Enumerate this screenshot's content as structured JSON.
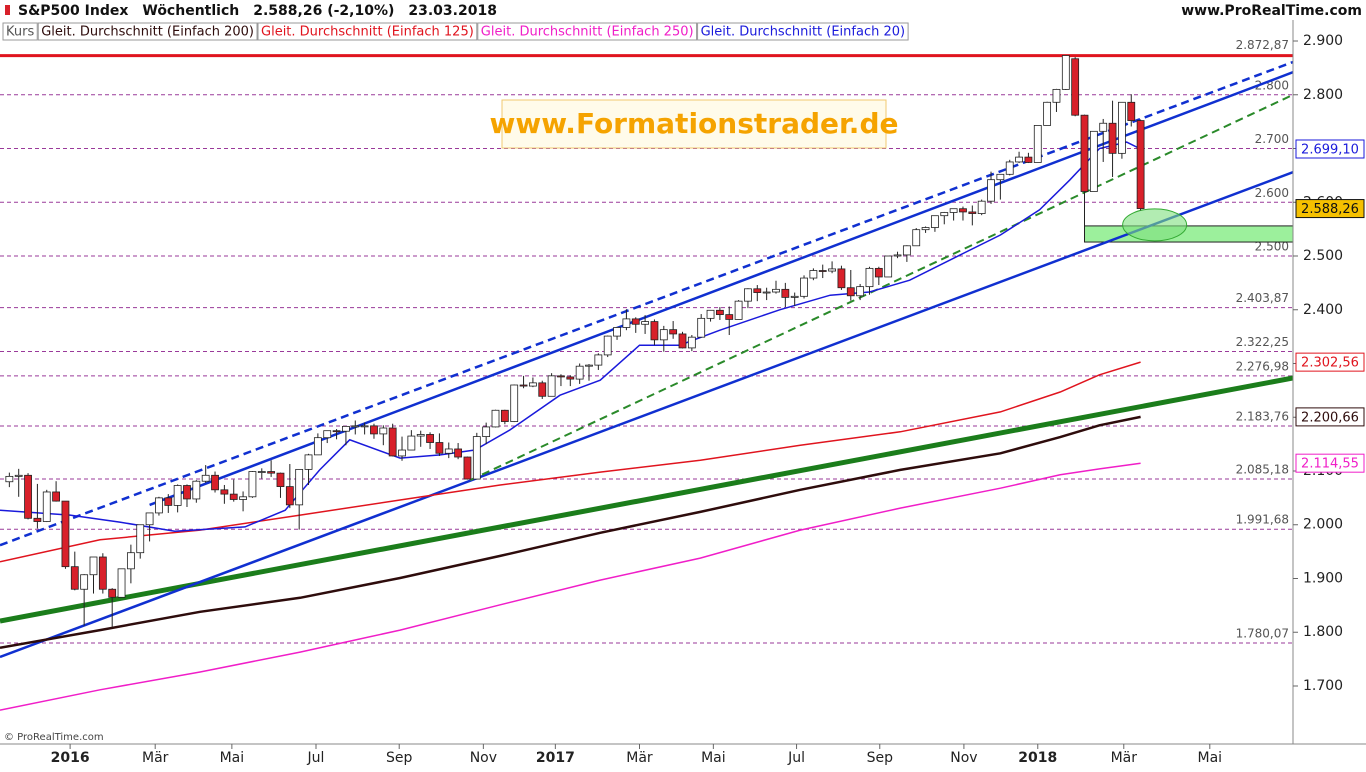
{
  "chart_data": {
    "type": "candlestick",
    "title": "S&P500 Index",
    "period": "Wöchentlich",
    "last": "2.588,26 (-2,10%)",
    "date": "23.03.2018",
    "source": "www.ProRealTime.com",
    "watermark": "www.Formationstrader.de",
    "copyright": "© ProRealTime.com",
    "xlim": [
      -1,
      137.3
    ],
    "ylim": [
      1595.8,
      2939.1
    ],
    "xticks": [
      {
        "value": 6.5,
        "label": "2016"
      },
      {
        "value": 15.6,
        "label": "Mär"
      },
      {
        "value": 23.8,
        "label": "Mai"
      },
      {
        "value": 32.8,
        "label": "Jul"
      },
      {
        "value": 41.7,
        "label": "Sep"
      },
      {
        "value": 50.7,
        "label": "Nov"
      },
      {
        "value": 58.4,
        "label": "2017"
      },
      {
        "value": 67.4,
        "label": "Mär"
      },
      {
        "value": 75.3,
        "label": "Mai"
      },
      {
        "value": 84.2,
        "label": "Jul"
      },
      {
        "value": 93.1,
        "label": "Sep"
      },
      {
        "value": 102.1,
        "label": "Nov"
      },
      {
        "value": 110,
        "label": "2018"
      },
      {
        "value": 119.2,
        "label": "Mär"
      },
      {
        "value": 128.4,
        "label": "Mai"
      }
    ],
    "yticks": [
      {
        "value": 2900,
        "label": "2.900"
      },
      {
        "value": 2800,
        "label": "2.800"
      },
      {
        "value": 2700,
        "label": "2.700"
      },
      {
        "value": 2600,
        "label": "2.600"
      },
      {
        "value": 2500,
        "label": "2.500"
      },
      {
        "value": 2400,
        "label": "2.400"
      },
      {
        "value": 2300,
        "label": "2.300"
      },
      {
        "value": 2200,
        "label": "2.200"
      },
      {
        "value": 2100,
        "label": "2.100"
      },
      {
        "value": 2000,
        "label": "2.000"
      },
      {
        "value": 1900,
        "label": "1.900"
      },
      {
        "value": 1800,
        "label": "1.800"
      },
      {
        "value": 1700,
        "label": "1.700"
      }
    ],
    "resistance": {
      "value": 2872.87,
      "label": "2.872,87",
      "color": "#e0141e"
    },
    "levels": [
      {
        "value": 2800,
        "label": "2.800"
      },
      {
        "value": 2700,
        "label": "2.700"
      },
      {
        "value": 2600,
        "label": "2.600"
      },
      {
        "value": 2500,
        "label": "2.500"
      },
      {
        "value": 2403.87,
        "label": "2.403,87"
      },
      {
        "value": 2322.25,
        "label": "2.322,25"
      },
      {
        "value": 2276.98,
        "label": "2.276,98"
      },
      {
        "value": 2183.76,
        "label": "2.183,76"
      },
      {
        "value": 2085.18,
        "label": "2.085,18"
      },
      {
        "value": 1991.68,
        "label": "1.991,68"
      },
      {
        "value": 1780.07,
        "label": "1.780,07"
      }
    ],
    "level_color": "#9a3a9a",
    "candles": {
      "name": "Kurs",
      "up_color": "#ffffff",
      "down_color": "#d8202a",
      "last_label": "2.588,26",
      "last_color": "#f5c000",
      "values": [
        [
          2080,
          2097,
          2070,
          2090
        ],
        [
          2090,
          2104,
          2052,
          2092
        ],
        [
          2092,
          2096,
          2010,
          2012
        ],
        [
          2012,
          2076,
          1993,
          2006
        ],
        [
          2006,
          2065,
          2005,
          2061
        ],
        [
          2061,
          2081,
          2043,
          2044
        ],
        [
          2044,
          2044,
          1918,
          1922
        ],
        [
          1922,
          1950,
          1878,
          1880
        ],
        [
          1880,
          1908,
          1812,
          1907
        ],
        [
          1907,
          1940,
          1872,
          1940
        ],
        [
          1940,
          1947,
          1872,
          1880
        ],
        [
          1880,
          1882,
          1810,
          1865
        ],
        [
          1865,
          1918,
          1865,
          1918
        ],
        [
          1918,
          1963,
          1891,
          1948
        ],
        [
          1948,
          2000,
          1937,
          2000
        ],
        [
          2000,
          2022,
          1969,
          2022
        ],
        [
          2022,
          2052,
          2017,
          2050
        ],
        [
          2050,
          2057,
          2022,
          2036
        ],
        [
          2036,
          2075,
          2023,
          2073
        ],
        [
          2073,
          2075,
          2033,
          2048
        ],
        [
          2048,
          2083,
          2041,
          2081
        ],
        [
          2081,
          2111,
          2078,
          2092
        ],
        [
          2092,
          2099,
          2060,
          2065
        ],
        [
          2065,
          2074,
          2039,
          2057
        ],
        [
          2057,
          2084,
          2043,
          2047
        ],
        [
          2047,
          2062,
          2025,
          2052
        ],
        [
          2052,
          2100,
          2050,
          2099
        ],
        [
          2099,
          2105,
          2086,
          2099
        ],
        [
          2099,
          2120,
          2089,
          2096
        ],
        [
          2096,
          2097,
          2050,
          2071
        ],
        [
          2071,
          2113,
          2031,
          2037
        ],
        [
          2037,
          2103,
          1991,
          2103
        ],
        [
          2103,
          2132,
          2074,
          2130
        ],
        [
          2130,
          2170,
          2130,
          2162
        ],
        [
          2162,
          2175,
          2152,
          2175
        ],
        [
          2175,
          2178,
          2159,
          2174
        ],
        [
          2174,
          2183,
          2148,
          2183
        ],
        [
          2183,
          2194,
          2168,
          2184
        ],
        [
          2184,
          2190,
          2168,
          2184
        ],
        [
          2184,
          2188,
          2160,
          2169
        ],
        [
          2169,
          2185,
          2148,
          2180
        ],
        [
          2180,
          2188,
          2127,
          2128
        ],
        [
          2128,
          2164,
          2119,
          2139
        ],
        [
          2139,
          2176,
          2139,
          2165
        ],
        [
          2165,
          2175,
          2145,
          2168
        ],
        [
          2168,
          2172,
          2141,
          2153
        ],
        [
          2153,
          2170,
          2128,
          2133
        ],
        [
          2133,
          2153,
          2124,
          2141
        ],
        [
          2141,
          2152,
          2122,
          2126
        ],
        [
          2126,
          2127,
          2084,
          2085
        ],
        [
          2085,
          2171,
          2084,
          2164
        ],
        [
          2164,
          2190,
          2150,
          2182
        ],
        [
          2182,
          2214,
          2181,
          2213
        ],
        [
          2213,
          2214,
          2187,
          2192
        ],
        [
          2192,
          2261,
          2191,
          2260
        ],
        [
          2260,
          2277,
          2254,
          2258
        ],
        [
          2258,
          2274,
          2256,
          2264
        ],
        [
          2264,
          2268,
          2234,
          2239
        ],
        [
          2239,
          2282,
          2239,
          2277
        ],
        [
          2277,
          2280,
          2258,
          2275
        ],
        [
          2275,
          2278,
          2258,
          2271
        ],
        [
          2271,
          2300,
          2262,
          2295
        ],
        [
          2295,
          2299,
          2268,
          2297
        ],
        [
          2297,
          2319,
          2288,
          2316
        ],
        [
          2316,
          2352,
          2312,
          2351
        ],
        [
          2351,
          2368,
          2344,
          2367
        ],
        [
          2367,
          2401,
          2362,
          2383
        ],
        [
          2383,
          2386,
          2357,
          2373
        ],
        [
          2373,
          2390,
          2355,
          2378
        ],
        [
          2378,
          2382,
          2334,
          2344
        ],
        [
          2344,
          2370,
          2322,
          2363
        ],
        [
          2363,
          2379,
          2346,
          2355
        ],
        [
          2355,
          2359,
          2328,
          2329
        ],
        [
          2329,
          2353,
          2323,
          2349
        ],
        [
          2349,
          2392,
          2349,
          2384
        ],
        [
          2384,
          2399,
          2378,
          2399
        ],
        [
          2399,
          2405,
          2381,
          2391
        ],
        [
          2391,
          2406,
          2353,
          2382
        ],
        [
          2382,
          2418,
          2382,
          2416
        ],
        [
          2416,
          2440,
          2403,
          2439
        ],
        [
          2439,
          2446,
          2416,
          2432
        ],
        [
          2432,
          2441,
          2418,
          2433
        ],
        [
          2433,
          2454,
          2430,
          2438
        ],
        [
          2438,
          2450,
          2405,
          2423
        ],
        [
          2423,
          2432,
          2407,
          2425
        ],
        [
          2425,
          2464,
          2421,
          2459
        ],
        [
          2459,
          2477,
          2455,
          2473
        ],
        [
          2473,
          2484,
          2459,
          2472
        ],
        [
          2472,
          2490,
          2468,
          2476
        ],
        [
          2476,
          2482,
          2437,
          2441
        ],
        [
          2441,
          2474,
          2417,
          2426
        ],
        [
          2426,
          2448,
          2418,
          2443
        ],
        [
          2443,
          2480,
          2428,
          2477
        ],
        [
          2477,
          2480,
          2446,
          2461
        ],
        [
          2461,
          2500,
          2461,
          2500
        ],
        [
          2500,
          2508,
          2496,
          2502
        ],
        [
          2502,
          2520,
          2489,
          2519
        ],
        [
          2519,
          2552,
          2519,
          2549
        ],
        [
          2549,
          2555,
          2543,
          2553
        ],
        [
          2553,
          2575,
          2545,
          2575
        ],
        [
          2575,
          2582,
          2559,
          2581
        ],
        [
          2581,
          2588,
          2566,
          2588
        ],
        [
          2588,
          2592,
          2566,
          2582
        ],
        [
          2582,
          2594,
          2557,
          2579
        ],
        [
          2579,
          2605,
          2576,
          2602
        ],
        [
          2602,
          2657,
          2597,
          2642
        ],
        [
          2642,
          2652,
          2605,
          2652
        ],
        [
          2652,
          2679,
          2650,
          2675
        ],
        [
          2675,
          2694,
          2673,
          2684
        ],
        [
          2684,
          2692,
          2673,
          2674
        ],
        [
          2674,
          2743,
          2674,
          2743
        ],
        [
          2743,
          2787,
          2743,
          2786
        ],
        [
          2786,
          2811,
          2768,
          2810
        ],
        [
          2810,
          2873,
          2809,
          2873
        ],
        [
          2867,
          2870,
          2760,
          2762
        ],
        [
          2762,
          2763,
          2533,
          2620
        ],
        [
          2620,
          2732,
          2620,
          2732
        ],
        [
          2732,
          2755,
          2675,
          2747
        ],
        [
          2747,
          2789,
          2647,
          2691
        ],
        [
          2691,
          2786,
          2681,
          2786
        ],
        [
          2786,
          2801,
          2741,
          2752
        ],
        [
          2752,
          2754,
          2585,
          2588.26
        ]
      ]
    },
    "series": [
      {
        "name": "Gleit. Durchschnitt (Einfach 200)",
        "color": "#2e0c0c",
        "width": 2.5,
        "value_label": "2.200,66",
        "x": [
          -1,
          9.7,
          20.4,
          31.1,
          41.8,
          52.5,
          63.2,
          73.9,
          84.6,
          95.3,
          106,
          112.4,
          116.6,
          121
        ],
        "values": [
          1771,
          1804,
          1838,
          1864,
          1901,
          1942,
          1985,
          2024,
          2065,
          2102,
          2133,
          2163,
          2185,
          2200.66
        ]
      },
      {
        "name": "Gleit. Durchschnitt (Einfach 125)",
        "color": "#e0141e",
        "width": 1.5,
        "value_label": "2.302,56",
        "x": [
          -1,
          9.7,
          20.4,
          31.1,
          41.8,
          52.5,
          63.2,
          73.9,
          84.6,
          95.3,
          106,
          112.4,
          116.6,
          121
        ],
        "values": [
          1931,
          1972,
          1990,
          2018,
          2046,
          2074,
          2098,
          2120,
          2148,
          2173,
          2210,
          2247,
          2279,
          2302.56
        ]
      },
      {
        "name": "Gleit. Durchschnitt (Einfach 250)",
        "color": "#f01ec8",
        "width": 1.5,
        "value_label": "2.114,55",
        "x": [
          -1,
          9.7,
          20.4,
          31.1,
          41.8,
          52.5,
          63.2,
          73.9,
          84.6,
          95.3,
          106,
          112.4,
          116.6,
          121
        ],
        "values": [
          1655,
          1693,
          1726,
          1763,
          1804,
          1851,
          1897,
          1938,
          1990,
          2031,
          2068,
          2093,
          2104,
          2114.55
        ]
      },
      {
        "name": "Gleit. Durchschnitt (Einfach 20)",
        "color": "#1a1adb",
        "width": 1.5,
        "value_label": "2.699,10",
        "x": [
          -1,
          6.5,
          11.8,
          17.7,
          25.2,
          29.5,
          33.2,
          36.4,
          41.8,
          46.1,
          49.8,
          53.5,
          58.9,
          63.2,
          67.4,
          71.7,
          76,
          82.4,
          87.8,
          92,
          96.3,
          101.7,
          106,
          110.2,
          113.4,
          116.6,
          119.5,
          121
        ],
        "values": [
          2027,
          2018,
          2005,
          1988,
          1996,
          2027,
          2102,
          2158,
          2124,
          2130,
          2139,
          2176,
          2241,
          2269,
          2334,
          2334,
          2362,
          2400,
          2427,
          2433,
          2455,
          2502,
          2539,
          2586,
          2641,
          2700,
          2712,
          2699.1
        ]
      }
    ],
    "trendlines": [
      {
        "color": "#1b7d1b",
        "width": 5,
        "dashed": false,
        "x": [
          -1,
          137.3
        ],
        "values": [
          1821,
          2273
        ]
      },
      {
        "color": "#1030d0",
        "width": 2.5,
        "dashed": false,
        "x": [
          -1,
          137.3
        ],
        "values": [
          1754,
          2656
        ]
      },
      {
        "color": "#1030d0",
        "width": 2.5,
        "dashed": false,
        "x": [
          15,
          137.3
        ],
        "values": [
          2037,
          2842
        ]
      },
      {
        "color": "#1030d0",
        "width": 2.5,
        "dashed": true,
        "x": [
          -1,
          137.3
        ],
        "values": [
          1962,
          2861
        ]
      },
      {
        "color": "#2a8a2a",
        "width": 2,
        "dashed": true,
        "x": [
          49.3,
          137.3
        ],
        "values": [
          2083,
          2800
        ]
      }
    ],
    "zone": {
      "x": [
        115,
        137.3
      ],
      "y": [
        2526,
        2556
      ],
      "color": "#9cf09c"
    },
    "highlight": {
      "x": 122.5,
      "y": 2558,
      "color": "#7fe07f"
    }
  }
}
